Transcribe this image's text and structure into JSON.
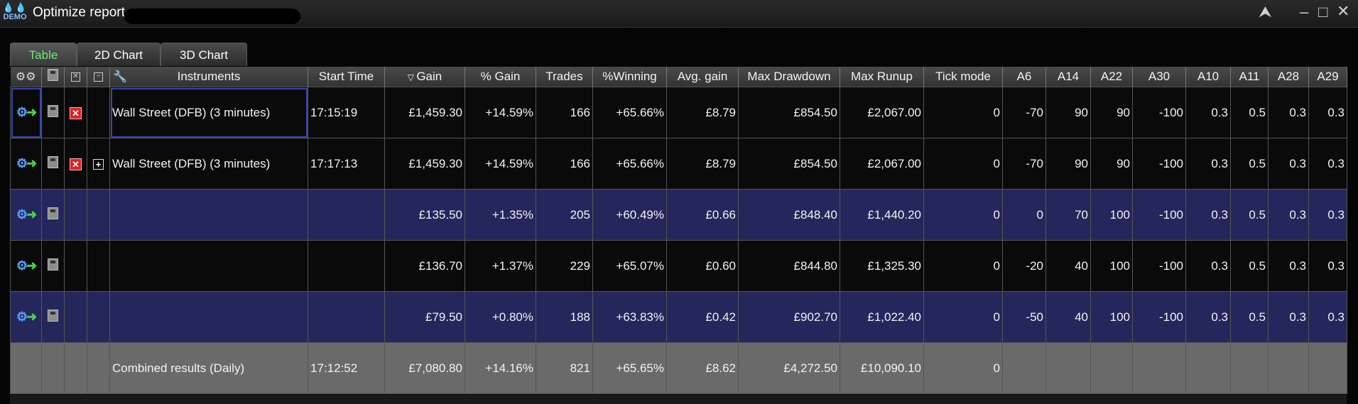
{
  "window": {
    "logo_text": "DEMO",
    "title": "Optimize report -"
  },
  "tabs": [
    {
      "label": "Table",
      "active": true
    },
    {
      "label": "2D Chart",
      "active": false
    },
    {
      "label": "3D Chart",
      "active": false
    }
  ],
  "columns": {
    "instruments": "Instruments",
    "start_time": "Start Time",
    "gain": "Gain",
    "pct_gain": "% Gain",
    "trades": "Trades",
    "pct_winning": "%Winning",
    "avg_gain": "Avg. gain",
    "max_drawdown": "Max Drawdown",
    "max_runup": "Max Runup",
    "tick_mode": "Tick mode",
    "a6": "A6",
    "a14": "A14",
    "a22": "A22",
    "a30": "A30",
    "a10": "A10",
    "a11": "A11",
    "a28": "A28",
    "a29": "A29"
  },
  "rows": [
    {
      "instrument": "Wall Street (DFB) (3 minutes)",
      "start_time": "17:15:19",
      "gain": "£1,459.30",
      "pct_gain": "+14.59%",
      "trades": "166",
      "pct_winning": "+65.66%",
      "avg_gain": "£8.79",
      "max_drawdown": "£854.50",
      "max_runup": "£2,067.00",
      "tick_mode": "0",
      "a6": "-70",
      "a14": "90",
      "a22": "90",
      "a30": "-100",
      "a10": "0.3",
      "a11": "0.5",
      "a28": "0.3",
      "a29": "0.3"
    },
    {
      "instrument": "Wall Street (DFB) (3 minutes)",
      "start_time": "17:17:13",
      "gain": "£1,459.30",
      "pct_gain": "+14.59%",
      "trades": "166",
      "pct_winning": "+65.66%",
      "avg_gain": "£8.79",
      "max_drawdown": "£854.50",
      "max_runup": "£2,067.00",
      "tick_mode": "0",
      "a6": "-70",
      "a14": "90",
      "a22": "90",
      "a30": "-100",
      "a10": "0.3",
      "a11": "0.5",
      "a28": "0.3",
      "a29": "0.3"
    },
    {
      "instrument": "",
      "start_time": "",
      "gain": "£135.50",
      "pct_gain": "+1.35%",
      "trades": "205",
      "pct_winning": "+60.49%",
      "avg_gain": "£0.66",
      "max_drawdown": "£848.40",
      "max_runup": "£1,440.20",
      "tick_mode": "0",
      "a6": "0",
      "a14": "70",
      "a22": "100",
      "a30": "-100",
      "a10": "0.3",
      "a11": "0.5",
      "a28": "0.3",
      "a29": "0.3"
    },
    {
      "instrument": "",
      "start_time": "",
      "gain": "£136.70",
      "pct_gain": "+1.37%",
      "trades": "229",
      "pct_winning": "+65.07%",
      "avg_gain": "£0.60",
      "max_drawdown": "£844.80",
      "max_runup": "£1,325.30",
      "tick_mode": "0",
      "a6": "-20",
      "a14": "40",
      "a22": "100",
      "a30": "-100",
      "a10": "0.3",
      "a11": "0.5",
      "a28": "0.3",
      "a29": "0.3"
    },
    {
      "instrument": "",
      "start_time": "",
      "gain": "£79.50",
      "pct_gain": "+0.80%",
      "trades": "188",
      "pct_winning": "+63.83%",
      "avg_gain": "£0.42",
      "max_drawdown": "£902.70",
      "max_runup": "£1,022.40",
      "tick_mode": "0",
      "a6": "-50",
      "a14": "40",
      "a22": "100",
      "a30": "-100",
      "a10": "0.3",
      "a11": "0.5",
      "a28": "0.3",
      "a29": "0.3"
    }
  ],
  "combined": {
    "instrument": "Combined results (Daily)",
    "start_time": "17:12:52",
    "gain": "£7,080.80",
    "pct_gain": "+14.16%",
    "trades": "821",
    "pct_winning": "+65.65%",
    "avg_gain": "£8.62",
    "max_drawdown": "£4,272.50",
    "max_runup": "£10,090.10",
    "tick_mode": "0"
  },
  "icons": {
    "window": [
      "demo-logo-icon",
      "share-icon",
      "minimize-icon",
      "maximize-icon",
      "close-icon"
    ],
    "row": [
      "optimize-gear-icon",
      "save-icon",
      "delete-icon",
      "expand-plus-icon"
    ],
    "header": [
      "gears-icon",
      "save-icon",
      "delete-icon",
      "collapse-icon",
      "wrench-icon",
      "sort-desc-icon"
    ]
  },
  "colors": {
    "active_tab_text": "#6fe86f",
    "row_black": "#0a0a0a",
    "row_blue": "#25265c",
    "row_combined": "#6a6a6a",
    "delete_red": "#d22222"
  }
}
